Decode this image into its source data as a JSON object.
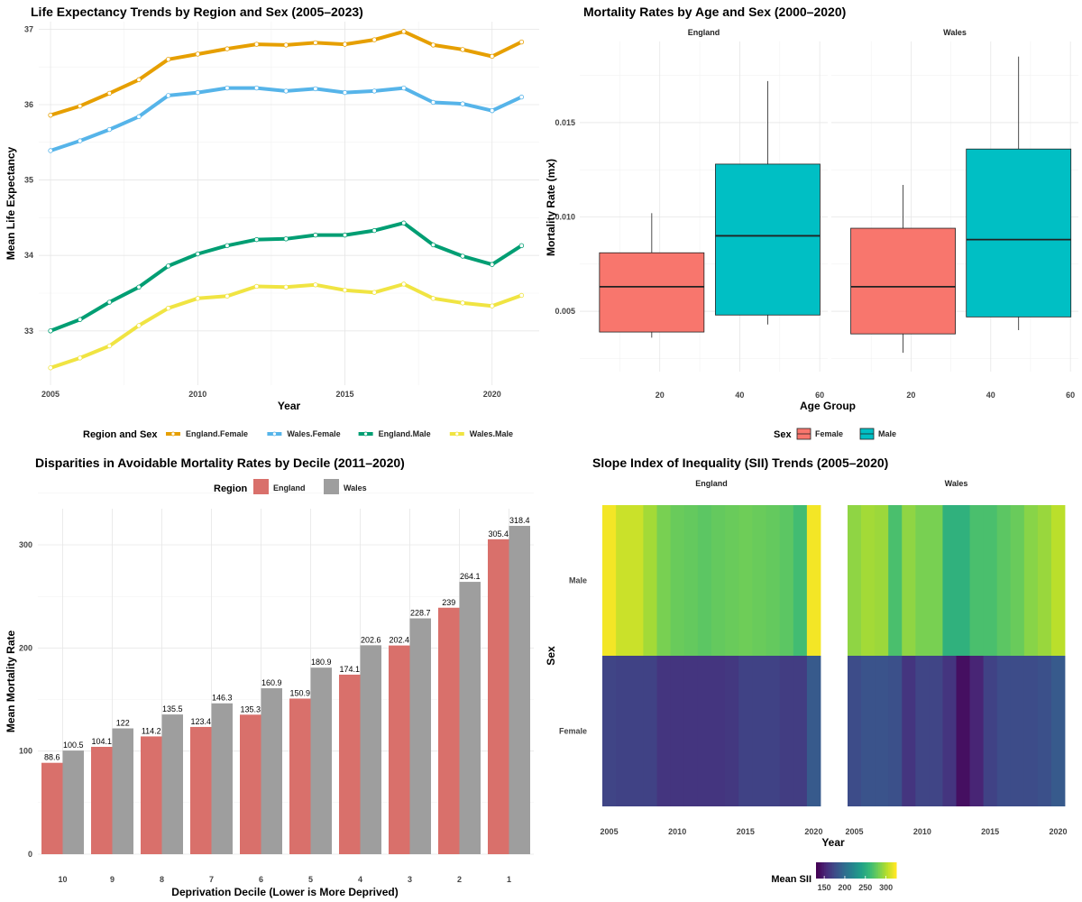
{
  "chart_data": [
    {
      "id": "p1",
      "type": "line",
      "title": "Life Expectancy Trends by Region and Sex (2005–2023)",
      "xlabel": "Year",
      "ylabel": "Mean Life Expectancy",
      "xlim": [
        2004.6,
        2021.6
      ],
      "ylim": [
        32.28,
        37.1
      ],
      "xticks": [
        2005,
        2010,
        2015,
        2020
      ],
      "yticks": [
        33,
        34,
        35,
        36,
        37
      ],
      "x": [
        2005,
        2006,
        2007,
        2008,
        2009,
        2010,
        2011,
        2012,
        2013,
        2014,
        2015,
        2016,
        2017,
        2018,
        2019,
        2020,
        2021
      ],
      "legend_title": "Region and Sex",
      "legend_position": "bottom",
      "series": [
        {
          "name": "England.Female",
          "color": "#E69F00",
          "values": [
            35.86,
            35.98,
            36.15,
            36.33,
            36.6,
            36.67,
            36.74,
            36.8,
            36.79,
            36.82,
            36.8,
            36.86,
            36.97,
            36.79,
            36.73,
            36.64,
            36.83
          ]
        },
        {
          "name": "Wales.Female",
          "color": "#56B4E9",
          "values": [
            35.39,
            35.52,
            35.67,
            35.84,
            36.12,
            36.16,
            36.22,
            36.22,
            36.18,
            36.21,
            36.16,
            36.18,
            36.22,
            36.03,
            36.01,
            35.92,
            36.1
          ]
        },
        {
          "name": "England.Male",
          "color": "#009E73",
          "values": [
            33.0,
            33.15,
            33.38,
            33.58,
            33.86,
            34.02,
            34.13,
            34.21,
            34.22,
            34.27,
            34.27,
            34.33,
            34.43,
            34.14,
            33.99,
            33.88,
            34.13
          ]
        },
        {
          "name": "Wales.Male",
          "color": "#F0E442",
          "values": [
            32.51,
            32.64,
            32.8,
            33.07,
            33.3,
            33.43,
            33.46,
            33.59,
            33.58,
            33.61,
            33.54,
            33.51,
            33.62,
            33.43,
            33.37,
            33.33,
            33.47
          ]
        }
      ]
    },
    {
      "id": "p2",
      "type": "box",
      "title": "Mortality Rates by Age and Sex (2000–2020)",
      "xlabel": "Age Group",
      "ylabel": "Mortality Rate (mx)",
      "xlim": [
        0,
        62
      ],
      "ylim": [
        0.0018,
        0.0193
      ],
      "xticks": [
        20,
        40,
        60
      ],
      "yticks": [
        0.005,
        0.01,
        0.015
      ],
      "ytick_labels": [
        "0.005",
        "0.010",
        "0.015"
      ],
      "legend_title": "Sex",
      "legend_position": "bottom",
      "panels": [
        {
          "strip": "England",
          "boxes": [
            {
              "sex": "Female",
              "color": "#F8766D",
              "x_center": 18,
              "min": 0.0036,
              "q1": 0.0039,
              "median": 0.0063,
              "q3": 0.0081,
              "max": 0.0102
            },
            {
              "sex": "Male",
              "color": "#00BFC4",
              "x_center": 47,
              "min": 0.0043,
              "q1": 0.0048,
              "median": 0.009,
              "q3": 0.0128,
              "max": 0.0172
            }
          ]
        },
        {
          "strip": "Wales",
          "boxes": [
            {
              "sex": "Female",
              "color": "#F8766D",
              "x_center": 18,
              "min": 0.0028,
              "q1": 0.0038,
              "median": 0.0063,
              "q3": 0.0094,
              "max": 0.0117
            },
            {
              "sex": "Male",
              "color": "#00BFC4",
              "x_center": 47,
              "min": 0.004,
              "q1": 0.0047,
              "median": 0.0088,
              "q3": 0.0136,
              "max": 0.0185
            }
          ]
        }
      ],
      "legend": [
        {
          "name": "Female",
          "color": "#F8766D"
        },
        {
          "name": "Male",
          "color": "#00BFC4"
        }
      ]
    },
    {
      "id": "p3",
      "type": "bar",
      "title": "Disparities in Avoidable Mortality Rates by Decile (2011–2020)",
      "xlabel": "Deprivation Decile (Lower is More Deprived)",
      "ylabel": "Mean Mortality Rate",
      "ylim": [
        0,
        335
      ],
      "yticks": [
        0,
        100,
        200,
        300
      ],
      "categories": [
        "10",
        "9",
        "8",
        "7",
        "6",
        "5",
        "4",
        "3",
        "2",
        "1"
      ],
      "legend_title": "Region",
      "legend_position": "top",
      "series": [
        {
          "name": "England",
          "color": "#D9706B",
          "values": [
            88.6,
            104.1,
            114.2,
            123.4,
            135.3,
            150.9,
            174.1,
            202.4,
            239,
            305.4
          ],
          "labels": [
            "88.6",
            "104.1",
            "114.2",
            "123.4",
            "135.3",
            "150.9",
            "174.1",
            "202.4",
            "239",
            "305.4"
          ]
        },
        {
          "name": "Wales",
          "color": "#9E9E9E",
          "values": [
            100.5,
            122,
            135.5,
            146.3,
            160.9,
            180.9,
            202.6,
            228.7,
            264.1,
            318.4
          ],
          "labels": [
            "100.5",
            "122",
            "135.5",
            "146.3",
            "160.9",
            "180.9",
            "202.6",
            "228.7",
            "264.1",
            "318.4"
          ]
        }
      ]
    },
    {
      "id": "p4",
      "type": "heatmap",
      "title": "Slope Index of Inequality (SII) Trends (2005–2020)",
      "xlabel": "Year",
      "ylabel": "Sex",
      "xticks": [
        2005,
        2010,
        2015,
        2020
      ],
      "years": [
        2005,
        2006,
        2007,
        2008,
        2009,
        2010,
        2011,
        2012,
        2013,
        2014,
        2015,
        2016,
        2017,
        2018,
        2019,
        2020
      ],
      "rows": [
        "Male",
        "Female"
      ],
      "color_range": [
        130,
        325
      ],
      "legend_title": "Mean SII",
      "legend_ticks": [
        150,
        200,
        250,
        300
      ],
      "legend_position": "bottom",
      "panels": [
        {
          "strip": "England",
          "values": {
            "Male": [
              322,
              310,
              310,
              298,
              285,
              280,
              278,
              275,
              278,
              280,
              282,
              280,
              278,
              275,
              265,
              322
            ],
            "Female": [
              170,
              168,
              168,
              168,
              160,
              160,
              160,
              160,
              160,
              162,
              168,
              168,
              168,
              165,
              165,
              185
            ]
          }
        },
        {
          "strip": "Wales",
          "values": {
            "Male": [
              292,
              298,
              296,
              268,
              292,
              285,
              285,
              255,
              255,
              268,
              268,
              275,
              280,
              290,
              295,
              305
            ],
            "Female": [
              175,
              180,
              180,
              178,
              160,
              170,
              170,
              160,
              138,
              150,
              168,
              175,
              175,
              175,
              178,
              185
            ]
          }
        }
      ]
    }
  ]
}
